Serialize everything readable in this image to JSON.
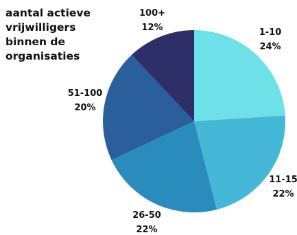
{
  "chart_data": {
    "type": "pie",
    "title": "aantal actieve\nvrijwilligers\nbinnen de\norganisaties",
    "slices": [
      {
        "label": "1-10",
        "pct_label": "24%",
        "value": 24,
        "color": "#6ee0e8"
      },
      {
        "label": "11-15",
        "pct_label": "22%",
        "value": 22,
        "color": "#45b8d8"
      },
      {
        "label": "26-50",
        "pct_label": "22%",
        "value": 22,
        "color": "#2a8cbc"
      },
      {
        "label": "51-100",
        "pct_label": "20%",
        "value": 20,
        "color": "#2a5e9c"
      },
      {
        "label": "100+",
        "pct_label": "12%",
        "value": 12,
        "color": "#2e2e68"
      }
    ],
    "legend": "none"
  }
}
